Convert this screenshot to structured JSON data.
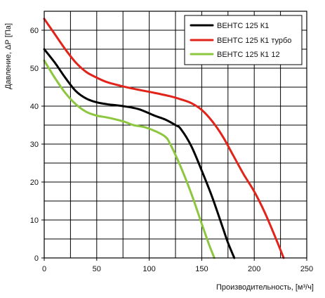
{
  "chart_data": {
    "type": "line",
    "title": "",
    "xlabel": "Производительность, [м³/ч]",
    "ylabel": "Давление, ΔР [Па]",
    "xlim": [
      0,
      250
    ],
    "ylim": [
      0,
      65
    ],
    "x_major_ticks": [
      0,
      50,
      100,
      150,
      200,
      250
    ],
    "x_minor_step": 25,
    "y_major_ticks": [
      0,
      10,
      20,
      30,
      40,
      50,
      60
    ],
    "y_minor_step": 5,
    "grid": true,
    "legend_position": "top-right",
    "series": [
      {
        "name": "ВЕНТС 125 К1",
        "color": "#000000",
        "points": [
          [
            0,
            55
          ],
          [
            10,
            51.5
          ],
          [
            20,
            47.5
          ],
          [
            30,
            44
          ],
          [
            40,
            42
          ],
          [
            50,
            41
          ],
          [
            60,
            40.5
          ],
          [
            75,
            40
          ],
          [
            90,
            39.2
          ],
          [
            105,
            37.5
          ],
          [
            115,
            36.5
          ],
          [
            125,
            35
          ],
          [
            130,
            34
          ],
          [
            140,
            29.5
          ],
          [
            150,
            23
          ],
          [
            160,
            16
          ],
          [
            170,
            8
          ],
          [
            175,
            4
          ],
          [
            181,
            0
          ]
        ]
      },
      {
        "name": "ВЕНТС 125 К1 турбо",
        "color": "#e2231a",
        "points": [
          [
            0,
            63
          ],
          [
            10,
            59
          ],
          [
            20,
            55
          ],
          [
            30,
            51.5
          ],
          [
            40,
            49
          ],
          [
            50,
            47.5
          ],
          [
            60,
            46.3
          ],
          [
            75,
            45.2
          ],
          [
            90,
            44.3
          ],
          [
            105,
            43.5
          ],
          [
            120,
            42.6
          ],
          [
            130,
            41.8
          ],
          [
            140,
            40.8
          ],
          [
            150,
            39
          ],
          [
            160,
            36
          ],
          [
            170,
            32
          ],
          [
            180,
            27
          ],
          [
            190,
            22
          ],
          [
            200,
            17.5
          ],
          [
            210,
            12
          ],
          [
            220,
            5.5
          ],
          [
            228,
            0
          ]
        ]
      },
      {
        "name": "ВЕНТС 125 К1 12",
        "color": "#8dc63f",
        "points": [
          [
            0,
            52
          ],
          [
            10,
            47.5
          ],
          [
            20,
            43.5
          ],
          [
            30,
            40.5
          ],
          [
            40,
            38.5
          ],
          [
            50,
            37.5
          ],
          [
            60,
            37
          ],
          [
            75,
            36
          ],
          [
            85,
            35
          ],
          [
            95,
            34.5
          ],
          [
            105,
            33.5
          ],
          [
            115,
            32
          ],
          [
            120,
            30
          ],
          [
            130,
            24
          ],
          [
            140,
            17
          ],
          [
            150,
            9
          ],
          [
            157,
            3.5
          ],
          [
            162,
            0
          ]
        ]
      }
    ]
  }
}
